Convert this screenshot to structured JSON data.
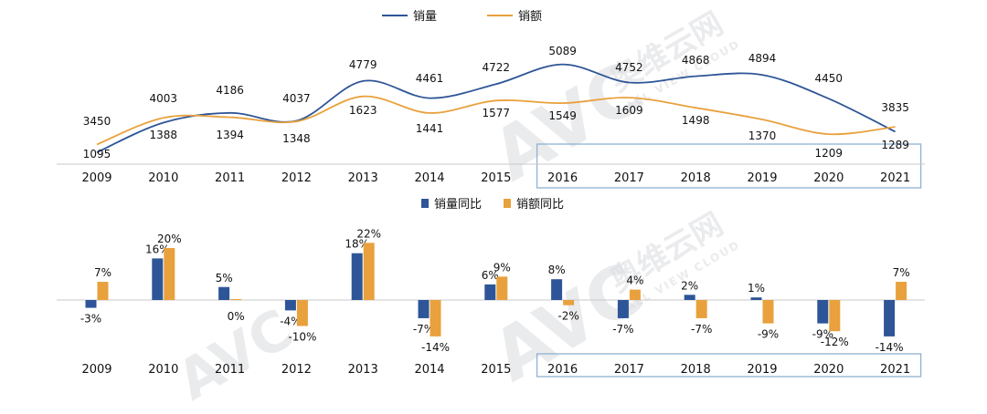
{
  "colors": {
    "sales_volume": "#2e5597",
    "sales_amount": "#e8a13d",
    "highlight_box": "#8eb2d2",
    "axis": "#c8c8c8"
  },
  "watermark": {
    "logo_text": "AVC",
    "brand_cn": "奥维云网",
    "brand_en": "ALL VIEW CLOUD"
  },
  "chart_data": [
    {
      "type": "line",
      "legend_position": "top",
      "categories": [
        "2009",
        "2010",
        "2011",
        "2012",
        "2013",
        "2014",
        "2015",
        "2016",
        "2017",
        "2018",
        "2019",
        "2020",
        "2021"
      ],
      "series": [
        {
          "name": "销量",
          "values": [
            3450,
            4003,
            4186,
            4037,
            4779,
            4461,
            4722,
            5089,
            4752,
            4868,
            4894,
            4450,
            3835
          ]
        },
        {
          "name": "销额",
          "values": [
            1095,
            1388,
            1394,
            1348,
            1623,
            1441,
            1577,
            1549,
            1609,
            1498,
            1370,
            1209,
            1289
          ]
        }
      ],
      "ylim": [
        0,
        5500
      ],
      "grid": false,
      "smooth": true,
      "highlight_categories": [
        "2016",
        "2021"
      ]
    },
    {
      "type": "bar",
      "legend_position": "top",
      "categories": [
        "2009",
        "2010",
        "2011",
        "2012",
        "2013",
        "2014",
        "2015",
        "2016",
        "2017",
        "2018",
        "2019",
        "2020",
        "2021"
      ],
      "series": [
        {
          "name": "销量同比",
          "values": [
            -3,
            16,
            5,
            -4,
            18,
            -7,
            6,
            8,
            -7,
            2,
            1,
            -9,
            -14
          ],
          "labels": [
            "-3%",
            "16%",
            "5%",
            "-4%",
            "18%",
            "-7%",
            "6%",
            "8%",
            "-7%",
            "2%",
            "1%",
            "-9%",
            "-14%"
          ]
        },
        {
          "name": "销额同比",
          "values": [
            7,
            20,
            0,
            -10,
            22,
            -14,
            9,
            -2,
            4,
            -7,
            -9,
            -12,
            7
          ],
          "labels": [
            "7%",
            "20%",
            "0%",
            "-10%",
            "22%",
            "-14%",
            "9%",
            "-2%",
            "4%",
            "-7%",
            "-9%",
            "-12%",
            "7%"
          ]
        }
      ],
      "unit": "%",
      "ylim": [
        -16,
        24
      ],
      "grid": false,
      "highlight_categories": [
        "2016",
        "2021"
      ]
    }
  ]
}
